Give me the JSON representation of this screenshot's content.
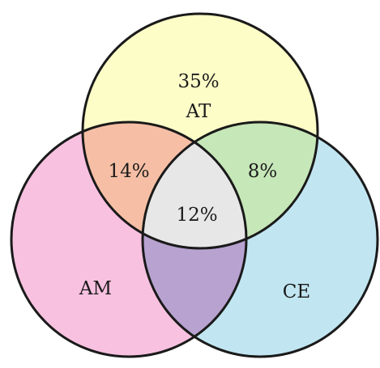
{
  "sets": [
    {
      "id": "at",
      "label": "AT",
      "only_value": "35%",
      "color": "#fdfdc8"
    },
    {
      "id": "am",
      "label": "AM",
      "only_value": "",
      "color": "#f8c1e0"
    },
    {
      "id": "ce",
      "label": "CE",
      "only_value": "",
      "color": "#c1e6f1"
    }
  ],
  "intersections": {
    "at_am": {
      "value": "14%",
      "color": "#f6bfa5"
    },
    "at_ce": {
      "value": "8%",
      "color": "#c6e7b8"
    },
    "am_ce": {
      "value": "",
      "color": "#b7a2d0"
    },
    "all": {
      "value": "12%",
      "color": "#e7e7e8"
    }
  },
  "outline_color": "#1a1a1a"
}
